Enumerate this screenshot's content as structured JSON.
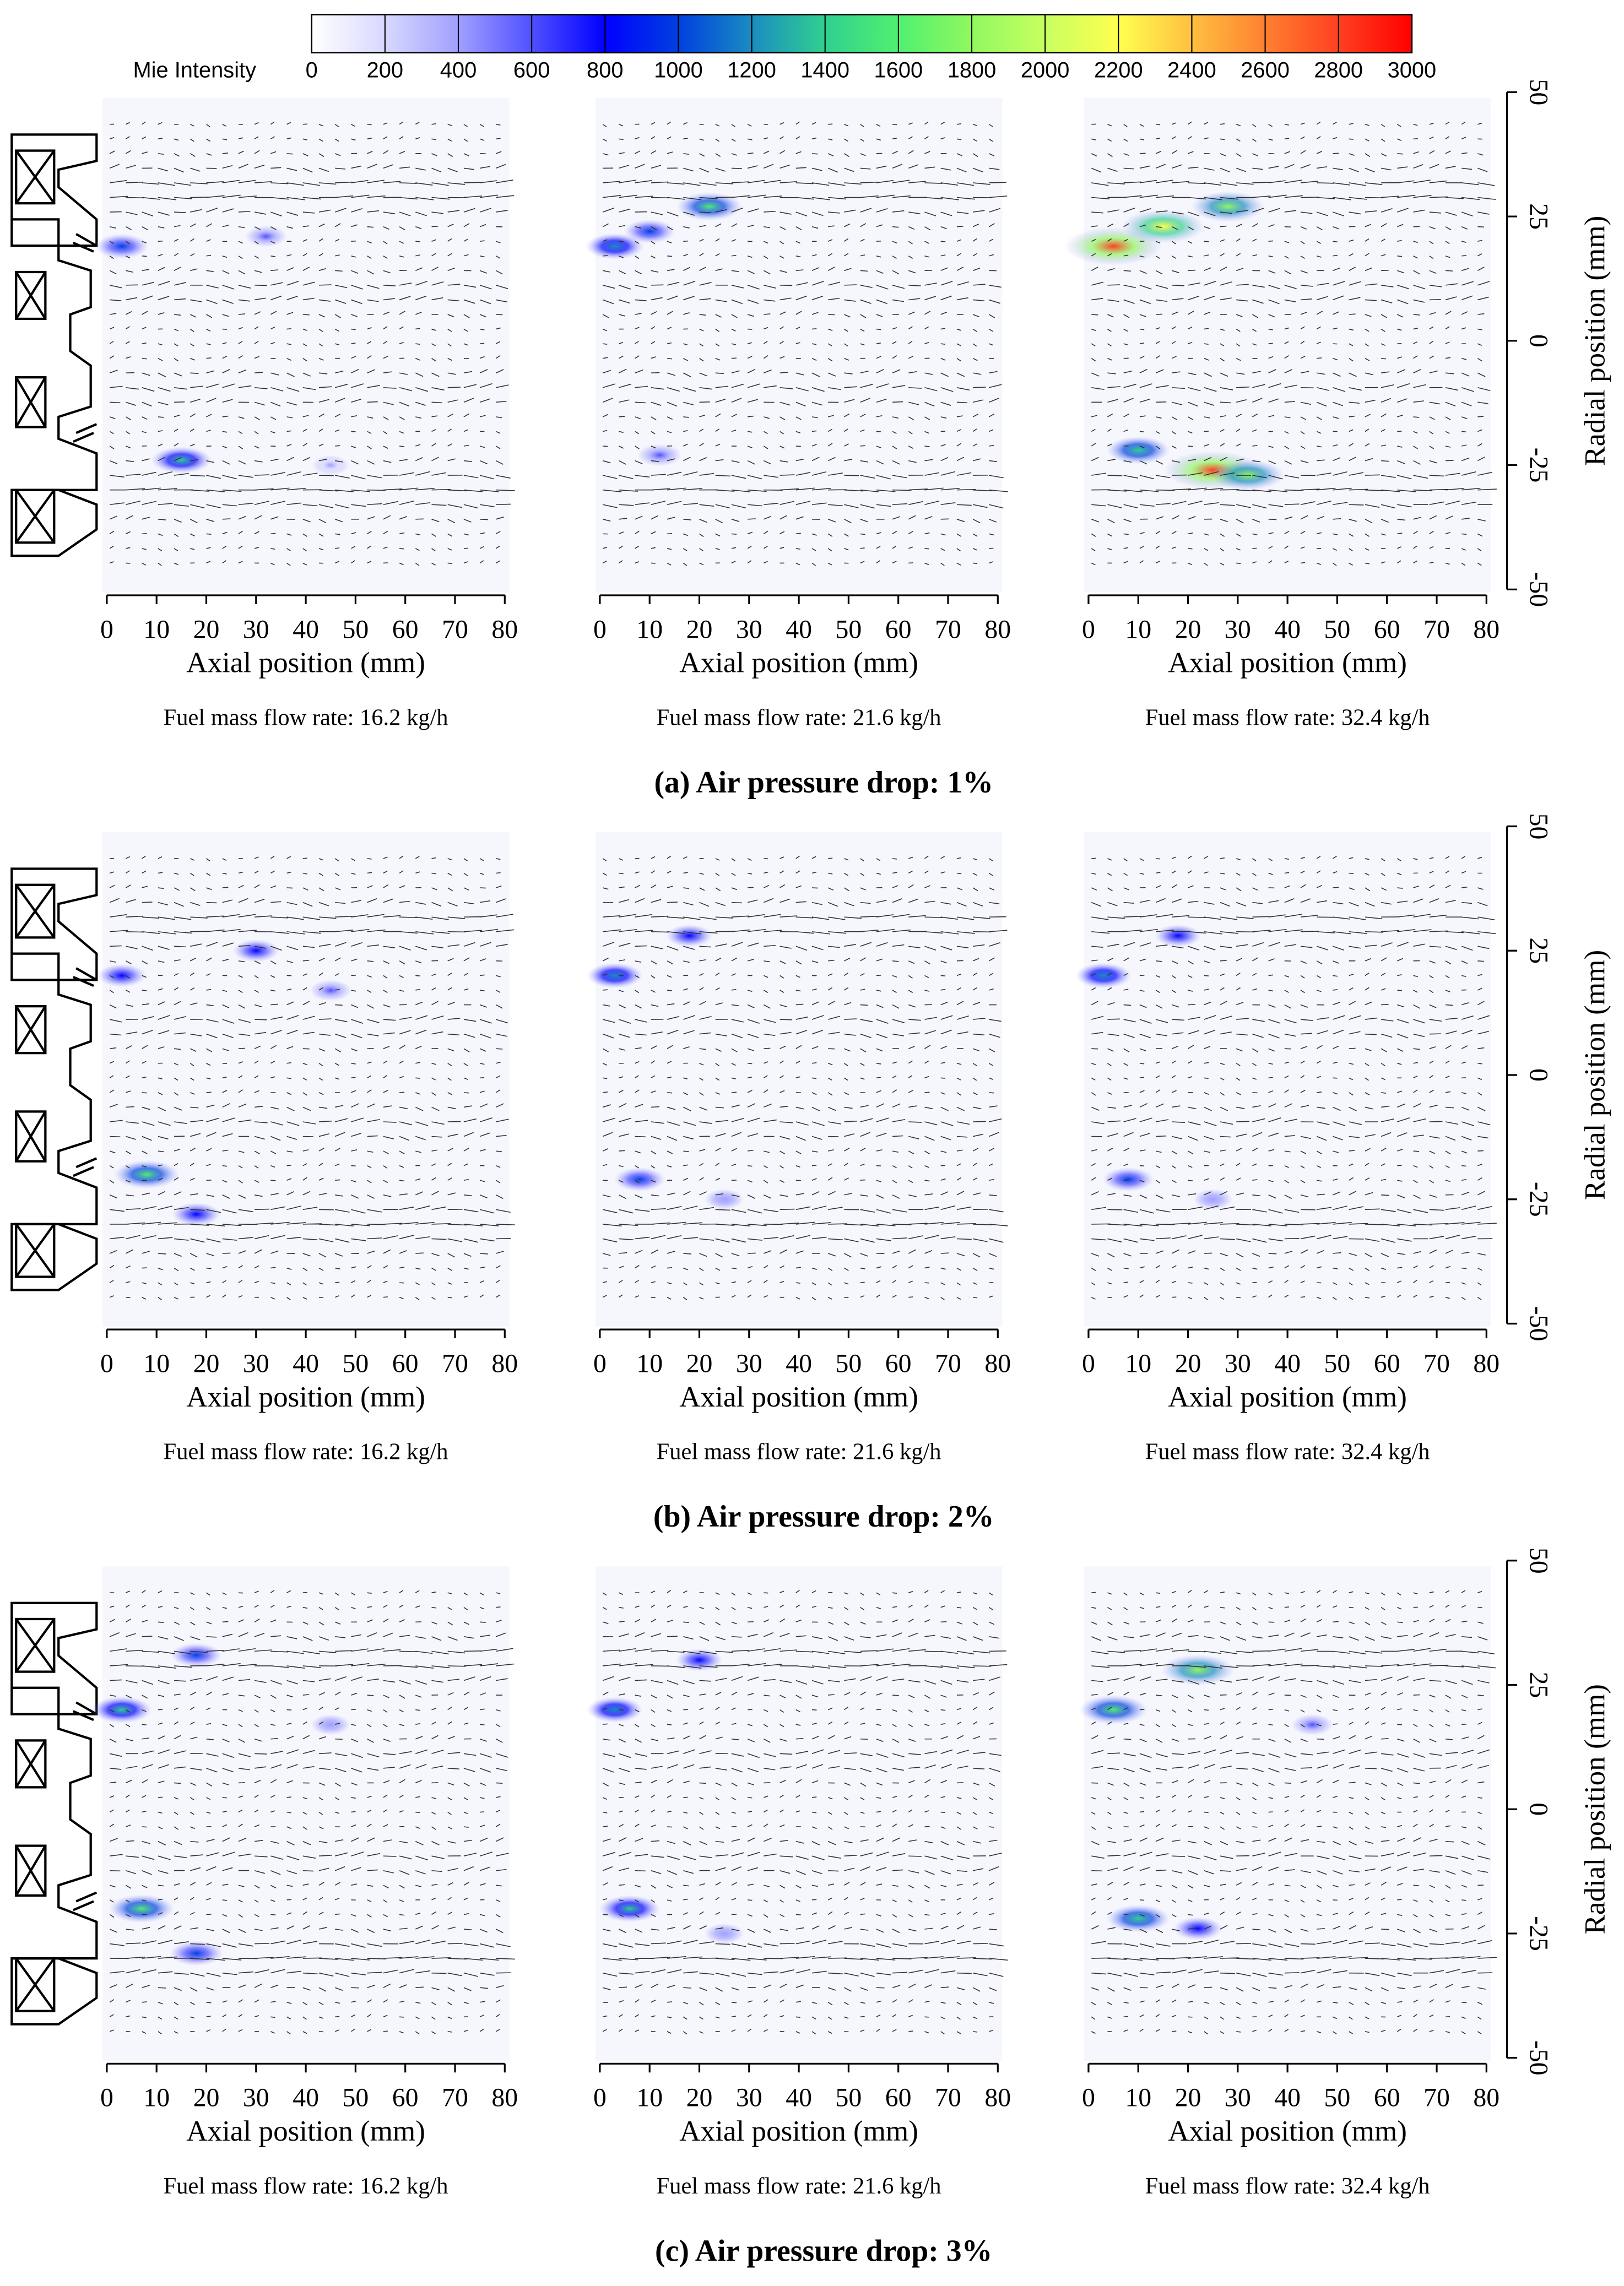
{
  "colorbar": {
    "label": "Mie Intensity",
    "ticks": [
      0,
      200,
      400,
      600,
      800,
      1000,
      1200,
      1400,
      1600,
      1800,
      2000,
      2200,
      2400,
      2600,
      2800,
      3000
    ],
    "colors": [
      "#ffffff",
      "#d8d8ff",
      "#a0a0ff",
      "#5050ff",
      "#0000ff",
      "#0040e0",
      "#1a8cc0",
      "#30d090",
      "#50f070",
      "#90f860",
      "#c8ff60",
      "#ffff50",
      "#ffc040",
      "#ff8030",
      "#ff4020",
      "#ff0000"
    ]
  },
  "rows": [
    {
      "title": "(a) Air pressure drop: 1%",
      "ylabel": "Radial position (mm)",
      "ylim": [
        -50,
        50
      ],
      "yticks": [
        -50,
        -25,
        0,
        25,
        50
      ],
      "panels": [
        {
          "caption": "Fuel mass flow rate: 16.2 kg/h",
          "xlabel": "Axial position (mm)",
          "xlim": [
            0,
            80
          ],
          "xticks": [
            0,
            10,
            20,
            30,
            40,
            50,
            60,
            70,
            80
          ],
          "x": [
            3,
            15,
            32,
            45
          ],
          "y": [
            19,
            -24,
            21,
            -25
          ],
          "values": [
            1000,
            1300,
            500,
            300
          ]
        },
        {
          "caption": "Fuel mass flow rate: 21.6 kg/h",
          "xlabel": "Axial position (mm)",
          "xlim": [
            0,
            80
          ],
          "xticks": [
            0,
            10,
            20,
            30,
            40,
            50,
            60,
            70,
            80
          ],
          "x": [
            3,
            10,
            22,
            12
          ],
          "y": [
            19,
            22,
            27,
            -23
          ],
          "values": [
            1200,
            900,
            1500,
            600
          ]
        },
        {
          "caption": "Fuel mass flow rate: 32.4 kg/h",
          "xlabel": "Axial position (mm)",
          "xlim": [
            0,
            80
          ],
          "xticks": [
            0,
            10,
            20,
            30,
            40,
            50,
            60,
            70,
            80
          ],
          "x": [
            5,
            15,
            28,
            10,
            25,
            32
          ],
          "y": [
            19,
            23,
            27,
            -22,
            -26,
            -27
          ],
          "values": [
            2800,
            2200,
            1800,
            1400,
            2800,
            1800
          ]
        }
      ]
    },
    {
      "title": "(b) Air pressure drop: 2%",
      "ylabel": "Radial position (mm)",
      "ylim": [
        -50,
        50
      ],
      "yticks": [
        -50,
        -25,
        0,
        25,
        50
      ],
      "panels": [
        {
          "caption": "Fuel mass flow rate: 16.2 kg/h",
          "xlabel": "Axial position (mm)",
          "xlim": [
            0,
            80
          ],
          "xticks": [
            0,
            10,
            20,
            30,
            40,
            50,
            60,
            70,
            80
          ],
          "x": [
            3,
            8,
            30,
            45,
            18
          ],
          "y": [
            20,
            -20,
            25,
            17,
            -28
          ],
          "values": [
            800,
            1500,
            700,
            500,
            800
          ]
        },
        {
          "caption": "Fuel mass flow rate: 21.6 kg/h",
          "xlabel": "Axial position (mm)",
          "xlim": [
            0,
            80
          ],
          "xticks": [
            0,
            10,
            20,
            30,
            40,
            50,
            60,
            70,
            80
          ],
          "x": [
            3,
            18,
            8,
            25
          ],
          "y": [
            20,
            28,
            -21,
            -25
          ],
          "values": [
            1100,
            700,
            900,
            400
          ]
        },
        {
          "caption": "Fuel mass flow rate: 32.4 kg/h",
          "xlabel": "Axial position (mm)",
          "xlim": [
            0,
            80
          ],
          "xticks": [
            0,
            10,
            20,
            30,
            40,
            50,
            60,
            70,
            80
          ],
          "x": [
            3,
            18,
            8,
            25
          ],
          "y": [
            20,
            28,
            -21,
            -25
          ],
          "values": [
            1100,
            700,
            900,
            400
          ]
        }
      ]
    },
    {
      "title": "(c) Air pressure drop: 3%",
      "ylabel": "Radial position (mm)",
      "ylim": [
        -50,
        50
      ],
      "yticks": [
        -50,
        -25,
        0,
        25,
        50
      ],
      "panels": [
        {
          "caption": "Fuel mass flow rate: 16.2 kg/h",
          "xlabel": "Axial position (mm)",
          "xlim": [
            0,
            80
          ],
          "xticks": [
            0,
            10,
            20,
            30,
            40,
            50,
            60,
            70,
            80
          ],
          "x": [
            3,
            18,
            7,
            18,
            45
          ],
          "y": [
            20,
            31,
            -20,
            -29,
            17
          ],
          "values": [
            1300,
            900,
            1500,
            1000,
            400
          ]
        },
        {
          "caption": "Fuel mass flow rate: 21.6 kg/h",
          "xlabel": "Axial position (mm)",
          "xlim": [
            0,
            80
          ],
          "xticks": [
            0,
            10,
            20,
            30,
            40,
            50,
            60,
            70,
            80
          ],
          "x": [
            3,
            20,
            6,
            25
          ],
          "y": [
            20,
            30,
            -20,
            -25
          ],
          "values": [
            1100,
            700,
            1300,
            400
          ]
        },
        {
          "caption": "Fuel mass flow rate: 32.4 kg/h",
          "xlabel": "Axial position (mm)",
          "xlim": [
            0,
            80
          ],
          "xticks": [
            0,
            10,
            20,
            30,
            40,
            50,
            60,
            70,
            80
          ],
          "x": [
            5,
            22,
            10,
            22,
            45
          ],
          "y": [
            20,
            28,
            -22,
            -24,
            17
          ],
          "values": [
            1600,
            1800,
            1400,
            800,
            500
          ]
        }
      ]
    }
  ]
}
